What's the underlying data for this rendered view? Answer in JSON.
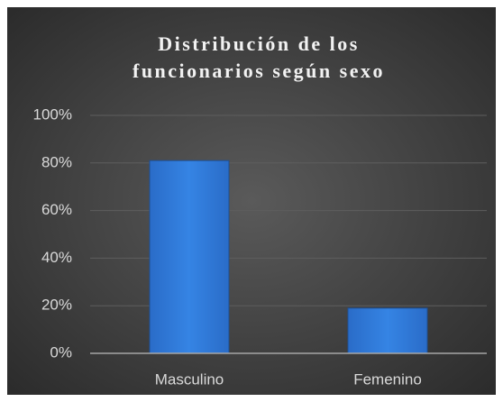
{
  "chart_data": {
    "type": "bar",
    "title": "Distribución de los funcionarios según sexo",
    "categories": [
      "Masculino",
      "Femenino"
    ],
    "values": [
      81,
      19
    ],
    "color": "#2f78d8",
    "ylim": [
      0,
      100
    ],
    "yticks": [
      {
        "value": 0,
        "label": "0%"
      },
      {
        "value": 20,
        "label": "20%"
      },
      {
        "value": 40,
        "label": "40%"
      },
      {
        "value": 60,
        "label": "60%"
      },
      {
        "value": 80,
        "label": "80%"
      },
      {
        "value": 100,
        "label": "100%"
      }
    ],
    "grid": true
  }
}
